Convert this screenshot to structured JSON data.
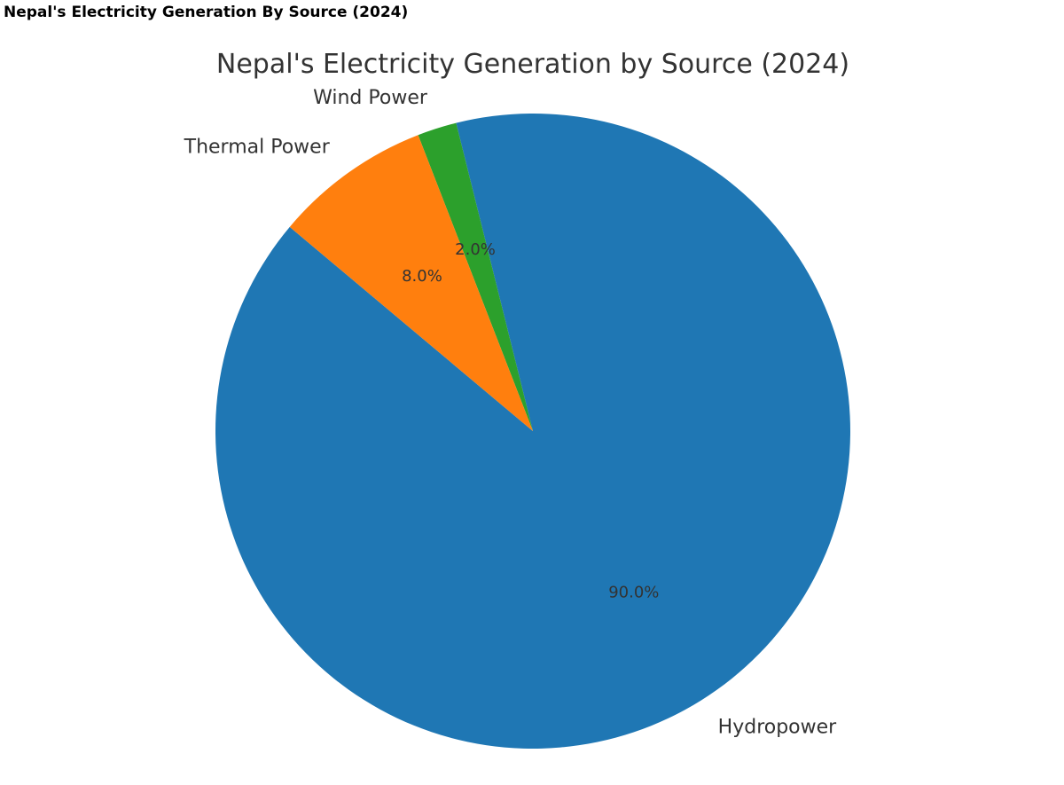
{
  "page": {
    "heading": "Nepal's Electricity Generation By Source (2024)"
  },
  "chart_data": {
    "type": "pie",
    "title": "Nepal's Electricity Generation by Source (2024)",
    "start_angle_deg": 140,
    "direction": "counterclockwise",
    "slices": [
      {
        "label": "Hydropower",
        "value": 90.0,
        "pct_label": "90.0%",
        "color": "#1f77b4"
      },
      {
        "label": "Wind Power",
        "value": 2.0,
        "pct_label": "2.0%",
        "color": "#2ca02c"
      },
      {
        "label": "Thermal Power",
        "value": 8.0,
        "pct_label": "8.0%",
        "color": "#ff7f0e"
      }
    ]
  }
}
